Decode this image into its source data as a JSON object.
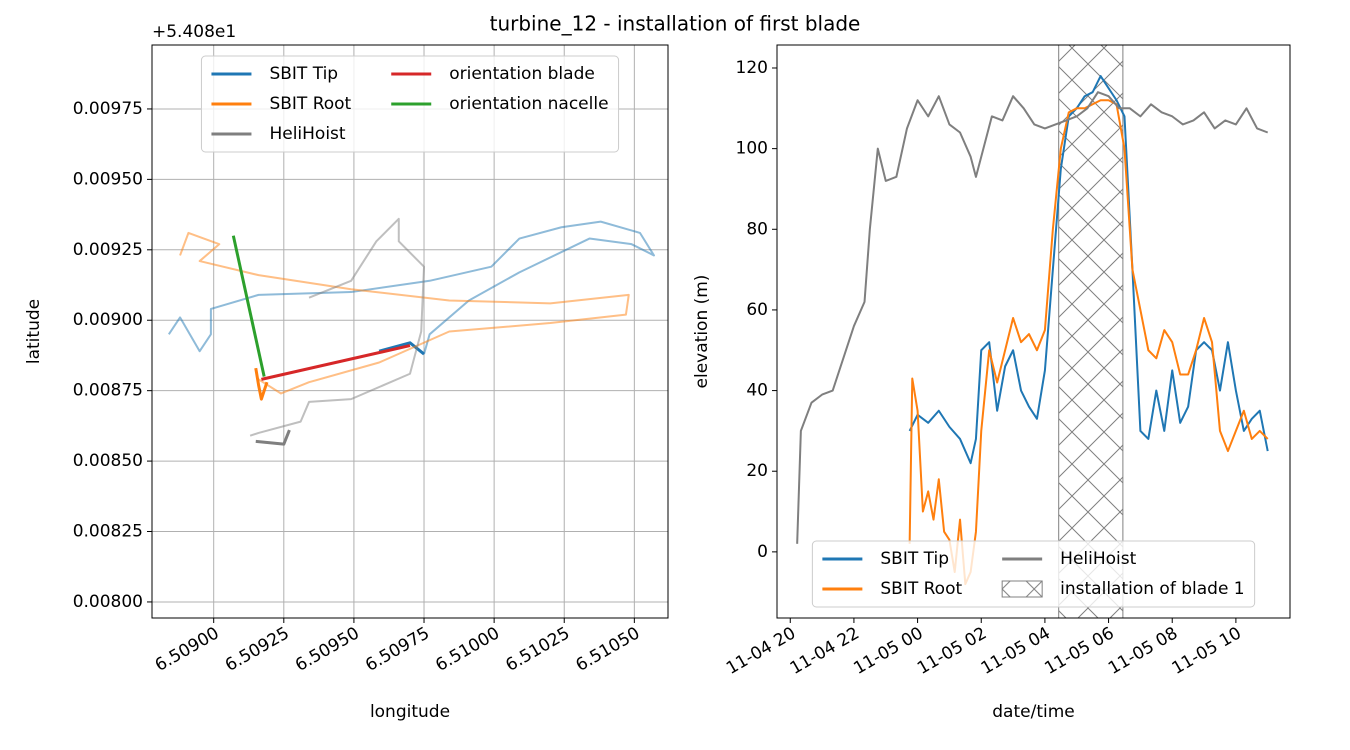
{
  "title": "turbine_12 - installation of first blade",
  "chart_data": [
    {
      "type": "xy-line",
      "xlabel": "longitude",
      "ylabel": "latitude",
      "y_offset_label": "+5.408e1",
      "xlim": [
        6.50878,
        6.51062
      ],
      "ylim": [
        0.007943,
        0.009977
      ],
      "xticks": [
        {
          "value": 6.509,
          "label": "6.50900"
        },
        {
          "value": 6.50925,
          "label": "6.50925"
        },
        {
          "value": 6.5095,
          "label": "6.50950"
        },
        {
          "value": 6.50975,
          "label": "6.50975"
        },
        {
          "value": 6.51,
          "label": "6.51000"
        },
        {
          "value": 6.51025,
          "label": "6.51025"
        },
        {
          "value": 6.5105,
          "label": "6.51050"
        }
      ],
      "yticks": [
        {
          "value": 0.008,
          "label": "0.00800"
        },
        0.00825,
        {
          "value": 0.0085,
          "label": "0.00850"
        },
        0.00875,
        {
          "value": 0.009,
          "label": "0.00900"
        },
        0.00925,
        {
          "value": 0.0095,
          "label": "0.00950"
        },
        0.00975
      ],
      "grid": true,
      "legend": "upper center",
      "legend_columns": 2,
      "series": [
        {
          "name": "SBIT Tip",
          "color": "#1f77b4",
          "x": [
            6.50959,
            6.5097,
            6.50975
          ],
          "y": [
            0.00889,
            0.00892,
            0.00888
          ],
          "trail": {
            "x": [
              6.50884,
              6.50888,
              6.50895,
              6.50899,
              6.50899,
              6.50916,
              6.50949,
              6.50977,
              6.50999,
              6.51009,
              6.51024,
              6.51038,
              6.51052,
              6.51057,
              6.51049,
              6.51034,
              6.51009,
              6.50991,
              6.50977,
              6.50975
            ],
            "y": [
              0.00895,
              0.00901,
              0.00889,
              0.00895,
              0.00904,
              0.00909,
              0.0091,
              0.00914,
              0.00919,
              0.00929,
              0.00933,
              0.00935,
              0.00931,
              0.00923,
              0.00927,
              0.00929,
              0.00917,
              0.00907,
              0.00895,
              0.00888
            ]
          }
        },
        {
          "name": "SBIT Root",
          "color": "#ff7f0e",
          "x": [
            6.50915,
            6.50916,
            6.50917,
            6.50919
          ],
          "y": [
            0.00883,
            0.00877,
            0.00872,
            0.00878
          ],
          "trail": {
            "x": [
              6.50888,
              6.50891,
              6.50902,
              6.50895,
              6.50916,
              6.50949,
              6.50984,
              6.5102,
              6.51048,
              6.51047,
              6.5102,
              6.50984,
              6.50959,
              6.50934,
              6.50924,
              6.50916
            ],
            "y": [
              0.00923,
              0.00931,
              0.00927,
              0.00921,
              0.00916,
              0.00911,
              0.00907,
              0.00906,
              0.00909,
              0.00902,
              0.00899,
              0.00896,
              0.00885,
              0.00878,
              0.00874,
              0.00879
            ]
          }
        },
        {
          "name": "HeliHoist",
          "color": "#7f7f7f",
          "x": [
            6.50915,
            6.50925,
            6.50927
          ],
          "y": [
            0.00857,
            0.00856,
            0.00861
          ],
          "trail": {
            "x": [
              6.50934,
              6.50949,
              6.50958,
              6.50966,
              6.50966,
              6.50975,
              6.50974,
              6.5097,
              6.50949,
              6.50934,
              6.50931,
              6.50916,
              6.50913
            ],
            "y": [
              0.00908,
              0.00914,
              0.00928,
              0.00936,
              0.00928,
              0.00919,
              0.00896,
              0.00881,
              0.00872,
              0.00871,
              0.00864,
              0.0086,
              0.00859
            ]
          }
        },
        {
          "name": "orientation blade",
          "color": "#d62728",
          "x": [
            6.50917,
            6.5097
          ],
          "y": [
            0.00879,
            0.00891
          ]
        },
        {
          "name": "orientation nacelle",
          "color": "#2ca02c",
          "x": [
            6.50907,
            6.50918
          ],
          "y": [
            0.0093,
            0.0088
          ]
        }
      ]
    },
    {
      "type": "time-line",
      "xlabel": "date/time",
      "ylabel": "elevation (m)",
      "xlim": [
        "11-04 19:35",
        "11-05 11:42"
      ],
      "ylim": [
        -16.4,
        125.7
      ],
      "xticks": [
        "11-04 20",
        "11-04 22",
        "11-05 00",
        "11-05 02",
        "11-05 04",
        "11-05 06",
        "11-05 08",
        "11-05 10"
      ],
      "yticks": [
        0,
        20,
        40,
        60,
        80,
        100,
        120
      ],
      "grid": false,
      "legend": "lower center",
      "legend_columns": 2,
      "span": {
        "name": "installation of blade 1",
        "x": [
          "11-05 04:26",
          "11-05 06:27"
        ],
        "color": "#808080",
        "hatch": "x"
      },
      "series": [
        {
          "name": "SBIT Tip",
          "color": "#1f77b4",
          "x": [
            "11-04 23:45",
            "11-05 00:00",
            "11-05 00:20",
            "11-05 00:40",
            "11-05 01:00",
            "11-05 01:20",
            "11-05 01:40",
            "11-05 01:50",
            "11-05 02:00",
            "11-05 02:15",
            "11-05 02:30",
            "11-05 02:45",
            "11-05 03:00",
            "11-05 03:15",
            "11-05 03:30",
            "11-05 03:45",
            "11-05 04:00",
            "11-05 04:15",
            "11-05 04:30",
            "11-05 04:45",
            "11-05 05:00",
            "11-05 05:15",
            "11-05 05:30",
            "11-05 05:45",
            "11-05 06:00",
            "11-05 06:15",
            "11-05 06:30",
            "11-05 06:45",
            "11-05 07:00",
            "11-05 07:15",
            "11-05 07:30",
            "11-05 07:45",
            "11-05 08:00",
            "11-05 08:15",
            "11-05 08:30",
            "11-05 08:45",
            "11-05 09:00",
            "11-05 09:15",
            "11-05 09:30",
            "11-05 09:45",
            "11-05 10:00",
            "11-05 10:15",
            "11-05 10:30",
            "11-05 10:45",
            "11-05 11:00"
          ],
          "values": [
            30,
            34,
            32,
            35,
            31,
            28,
            22,
            28,
            50,
            52,
            35,
            46,
            50,
            40,
            36,
            33,
            45,
            70,
            95,
            108,
            110,
            113,
            114,
            118,
            115,
            112,
            108,
            70,
            30,
            28,
            40,
            30,
            45,
            32,
            36,
            50,
            52,
            50,
            40,
            52,
            40,
            30,
            33,
            35,
            25
          ]
        },
        {
          "name": "SBIT Root",
          "color": "#ff7f0e",
          "x": [
            "11-04 23:45",
            "11-04 23:50",
            "11-05 00:00",
            "11-05 00:10",
            "11-05 00:20",
            "11-05 00:30",
            "11-05 00:40",
            "11-05 00:50",
            "11-05 01:00",
            "11-05 01:10",
            "11-05 01:20",
            "11-05 01:30",
            "11-05 01:40",
            "11-05 01:50",
            "11-05 02:00",
            "11-05 02:15",
            "11-05 02:30",
            "11-05 02:45",
            "11-05 03:00",
            "11-05 03:15",
            "11-05 03:30",
            "11-05 03:45",
            "11-05 04:00",
            "11-05 04:15",
            "11-05 04:30",
            "11-05 04:45",
            "11-05 05:00",
            "11-05 05:15",
            "11-05 05:30",
            "11-05 05:45",
            "11-05 06:00",
            "11-05 06:15",
            "11-05 06:30",
            "11-05 06:45",
            "11-05 07:00",
            "11-05 07:15",
            "11-05 07:30",
            "11-05 07:45",
            "11-05 08:00",
            "11-05 08:15",
            "11-05 08:30",
            "11-05 08:45",
            "11-05 09:00",
            "11-05 09:15",
            "11-05 09:30",
            "11-05 09:45",
            "11-05 10:00",
            "11-05 10:15",
            "11-05 10:30",
            "11-05 10:45",
            "11-05 11:00"
          ],
          "values": [
            2,
            43,
            35,
            10,
            15,
            8,
            18,
            5,
            3,
            -5,
            8,
            -8,
            -5,
            5,
            30,
            50,
            42,
            50,
            58,
            52,
            54,
            50,
            55,
            80,
            100,
            109,
            110,
            110,
            111,
            112,
            112,
            111,
            100,
            70,
            60,
            50,
            48,
            55,
            52,
            44,
            44,
            50,
            58,
            52,
            30,
            25,
            30,
            35,
            28,
            30,
            28
          ]
        },
        {
          "name": "HeliHoist",
          "color": "#7f7f7f",
          "x": [
            "11-04 20:13",
            "11-04 20:20",
            "11-04 20:40",
            "11-04 21:00",
            "11-04 21:20",
            "11-04 21:40",
            "11-04 22:00",
            "11-04 22:20",
            "11-04 22:30",
            "11-04 22:45",
            "11-04 23:00",
            "11-04 23:20",
            "11-04 23:40",
            "11-05 00:00",
            "11-05 00:20",
            "11-05 00:40",
            "11-05 01:00",
            "11-05 01:20",
            "11-05 01:40",
            "11-05 01:50",
            "11-05 02:00",
            "11-05 02:20",
            "11-05 02:40",
            "11-05 03:00",
            "11-05 03:20",
            "11-05 03:40",
            "11-05 04:00",
            "11-05 04:20",
            "11-05 04:40",
            "11-05 05:00",
            "11-05 05:20",
            "11-05 05:40",
            "11-05 06:00",
            "11-05 06:20",
            "11-05 06:40",
            "11-05 07:00",
            "11-05 07:20",
            "11-05 07:40",
            "11-05 08:00",
            "11-05 08:20",
            "11-05 08:40",
            "11-05 09:00",
            "11-05 09:20",
            "11-05 09:40",
            "11-05 10:00",
            "11-05 10:20",
            "11-05 10:40",
            "11-05 11:00"
          ],
          "values": [
            2,
            30,
            37,
            39,
            40,
            48,
            56,
            62,
            80,
            100,
            92,
            93,
            105,
            112,
            108,
            113,
            106,
            104,
            98,
            93,
            98,
            108,
            107,
            113,
            110,
            106,
            105,
            106,
            107,
            108,
            110,
            114,
            113,
            110,
            110,
            108,
            111,
            109,
            108,
            106,
            107,
            109,
            105,
            107,
            106,
            110,
            105,
            104
          ]
        }
      ]
    }
  ]
}
